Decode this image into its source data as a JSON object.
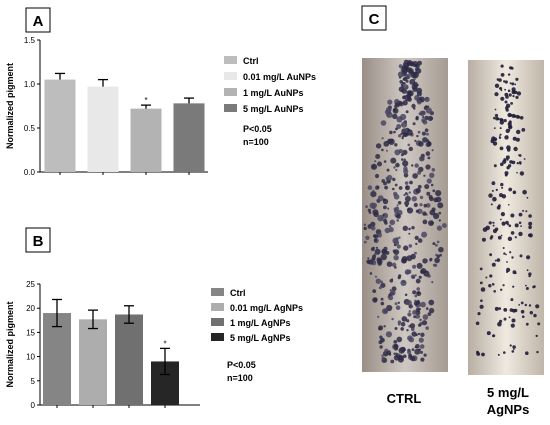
{
  "panels": {
    "a": "A",
    "b": "B",
    "c": "C"
  },
  "images": {
    "ctrl_caption": "CTRL",
    "treated_caption_line1": "5 mg/L",
    "treated_caption_line2": "AgNPs"
  },
  "chart_data": [
    {
      "type": "bar",
      "categories": [
        "Ctrl",
        "0.01 mg/L AuNPs",
        "1 mg/L AuNPs",
        "5 mg/L AuNPs"
      ],
      "values": [
        1.05,
        0.97,
        0.72,
        0.78
      ],
      "errors": [
        0.07,
        0.08,
        0.04,
        0.06
      ],
      "significance": [
        "",
        "",
        "*",
        ""
      ],
      "colors": [
        "#bdbdbd",
        "#e8e8e8",
        "#b3b3b3",
        "#7a7a7a"
      ],
      "ylabel": "Normalized pigment",
      "ylim": [
        0,
        1.5
      ],
      "yticks": [
        "0.0",
        "0.5",
        "1.0",
        "1.5"
      ],
      "yticks_values": [
        0,
        0.5,
        1.0,
        1.5
      ],
      "legend": [
        "Ctrl",
        "0.01 mg/L AuNPs",
        "1 mg/L AuNPs",
        "5 mg/L AuNPs"
      ],
      "notes": [
        "P<0.05",
        "n=100"
      ]
    },
    {
      "type": "bar",
      "categories": [
        "Ctrl",
        "0.01 mg/L AgNPs",
        "1 mg/L AgNPs",
        "5 mg/L AgNPs"
      ],
      "values": [
        19,
        17.7,
        18.7,
        9
      ],
      "errors": [
        2.8,
        1.9,
        1.8,
        2.7
      ],
      "significance": [
        "",
        "",
        "",
        "*"
      ],
      "colors": [
        "#858585",
        "#adadad",
        "#707070",
        "#262626"
      ],
      "ylabel": "Normalized pigment",
      "ylim": [
        0,
        25
      ],
      "yticks": [
        "0",
        "5",
        "10",
        "15",
        "20",
        "25"
      ],
      "yticks_values": [
        0,
        5,
        10,
        15,
        20,
        25
      ],
      "legend": [
        "Ctrl",
        "0.01 mg/L AgNPs",
        "1 mg/L AgNPs",
        "5 mg/L AgNPs"
      ],
      "notes": [
        "P<0.05",
        "n=100"
      ]
    }
  ]
}
